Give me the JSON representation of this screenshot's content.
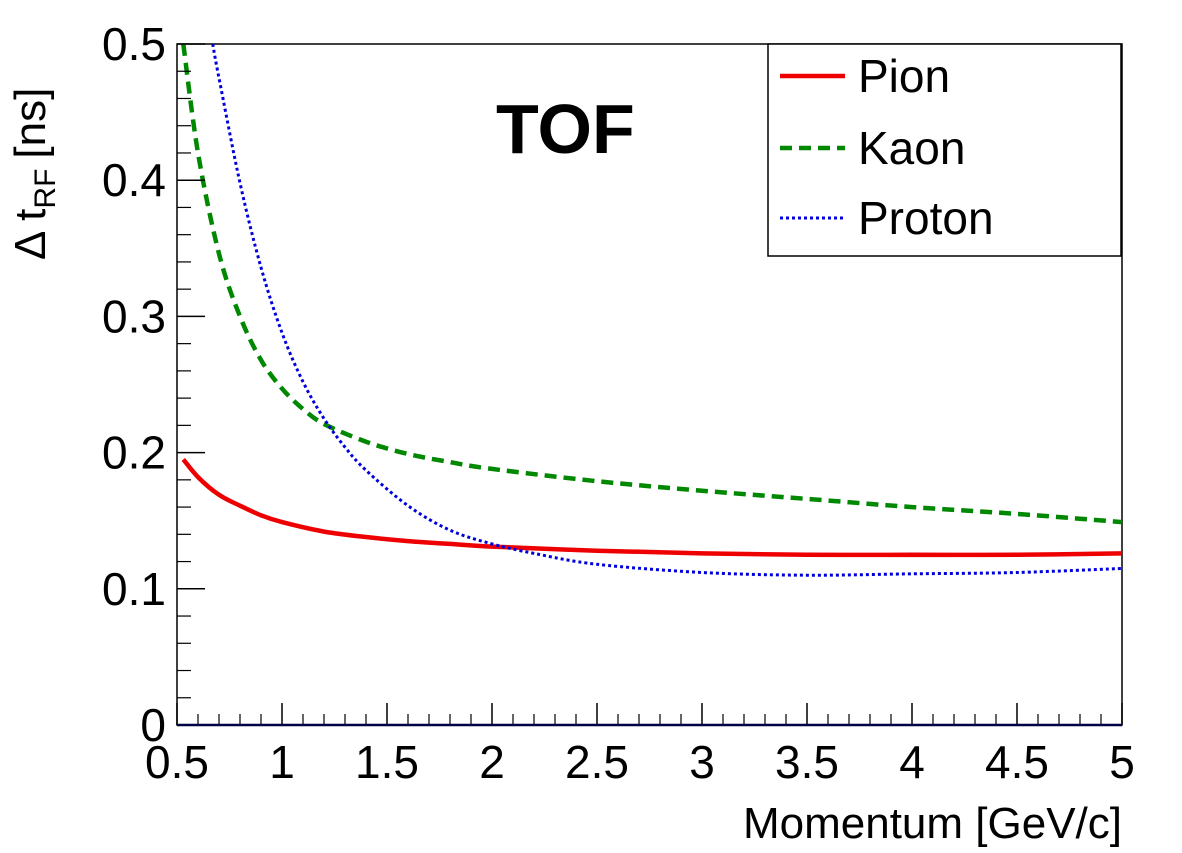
{
  "chart_data": {
    "type": "line",
    "title": "",
    "annotation": "TOF",
    "xlabel": "Momentum [GeV/c]",
    "ylabel_main": "Δ t",
    "ylabel_sub": "RF",
    "ylabel_unit": "[ns]",
    "xlim": [
      0.5,
      5
    ],
    "ylim": [
      0,
      0.5
    ],
    "x_ticks": [
      0.5,
      1,
      1.5,
      2,
      2.5,
      3,
      3.5,
      4,
      4.5,
      5
    ],
    "x_tick_labels": [
      "0.5",
      "1",
      "1.5",
      "2",
      "2.5",
      "3",
      "3.5",
      "4",
      "4.5",
      "5"
    ],
    "y_ticks": [
      0,
      0.1,
      0.2,
      0.3,
      0.4,
      0.5
    ],
    "y_tick_labels": [
      "0",
      "0.1",
      "0.2",
      "0.3",
      "0.4",
      "0.5"
    ],
    "grid": false,
    "legend_position": "top-right",
    "series": [
      {
        "name": "Pion",
        "color": "#ee0000",
        "style": "solid",
        "points": [
          [
            0.53,
            0.195
          ],
          [
            0.6,
            0.182
          ],
          [
            0.7,
            0.169
          ],
          [
            0.8,
            0.161
          ],
          [
            0.9,
            0.154
          ],
          [
            1.0,
            0.149
          ],
          [
            1.2,
            0.142
          ],
          [
            1.4,
            0.138
          ],
          [
            1.6,
            0.135
          ],
          [
            1.8,
            0.133
          ],
          [
            2.0,
            0.131
          ],
          [
            2.5,
            0.128
          ],
          [
            3.0,
            0.126
          ],
          [
            3.5,
            0.125
          ],
          [
            4.0,
            0.125
          ],
          [
            4.5,
            0.125
          ],
          [
            5.0,
            0.126
          ]
        ]
      },
      {
        "name": "Kaon",
        "color": "#008800",
        "style": "dashed",
        "points": [
          [
            0.53,
            0.5
          ],
          [
            0.6,
            0.42
          ],
          [
            0.7,
            0.346
          ],
          [
            0.8,
            0.3
          ],
          [
            0.9,
            0.268
          ],
          [
            1.0,
            0.247
          ],
          [
            1.1,
            0.232
          ],
          [
            1.2,
            0.221
          ],
          [
            1.4,
            0.208
          ],
          [
            1.6,
            0.199
          ],
          [
            1.8,
            0.193
          ],
          [
            2.0,
            0.188
          ],
          [
            2.5,
            0.179
          ],
          [
            3.0,
            0.172
          ],
          [
            3.5,
            0.166
          ],
          [
            4.0,
            0.16
          ],
          [
            4.5,
            0.155
          ],
          [
            5.0,
            0.149
          ]
        ]
      },
      {
        "name": "Proton",
        "color": "#0000dd",
        "style": "dotted",
        "points": [
          [
            0.67,
            0.5
          ],
          [
            0.7,
            0.475
          ],
          [
            0.8,
            0.398
          ],
          [
            0.9,
            0.336
          ],
          [
            1.0,
            0.288
          ],
          [
            1.1,
            0.252
          ],
          [
            1.2,
            0.225
          ],
          [
            1.3,
            0.204
          ],
          [
            1.4,
            0.187
          ],
          [
            1.6,
            0.161
          ],
          [
            1.8,
            0.143
          ],
          [
            2.0,
            0.133
          ],
          [
            2.2,
            0.126
          ],
          [
            2.5,
            0.118
          ],
          [
            3.0,
            0.112
          ],
          [
            3.5,
            0.11
          ],
          [
            4.0,
            0.111
          ],
          [
            4.5,
            0.112
          ],
          [
            5.0,
            0.115
          ]
        ]
      }
    ]
  }
}
